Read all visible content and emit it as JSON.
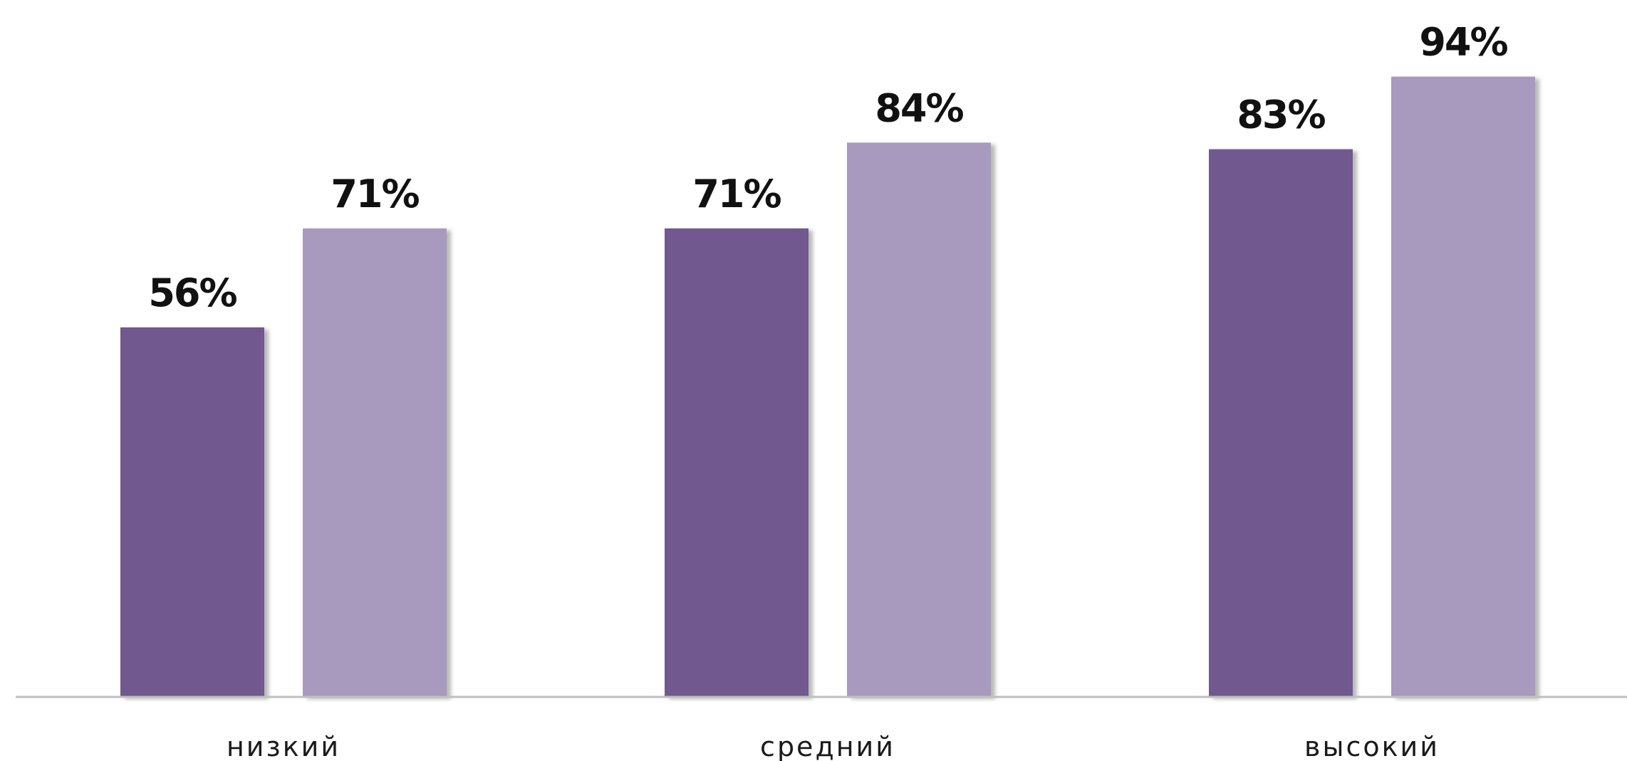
{
  "chart_data": {
    "type": "bar",
    "categories": [
      "низкий",
      "средний",
      "высокий"
    ],
    "series": [
      {
        "color": "#71588f",
        "values": [
          56,
          71,
          83
        ]
      },
      {
        "color": "#a89abe",
        "values": [
          71,
          84,
          94
        ]
      }
    ],
    "data_labels": [
      [
        "56%",
        "71%",
        "83%"
      ],
      [
        "71%",
        "84%",
        "94%"
      ]
    ],
    "value_unit": "%",
    "ylim": [
      0,
      100
    ],
    "grid": false,
    "legend": "none",
    "baseline_color": "#bfbfbf"
  }
}
